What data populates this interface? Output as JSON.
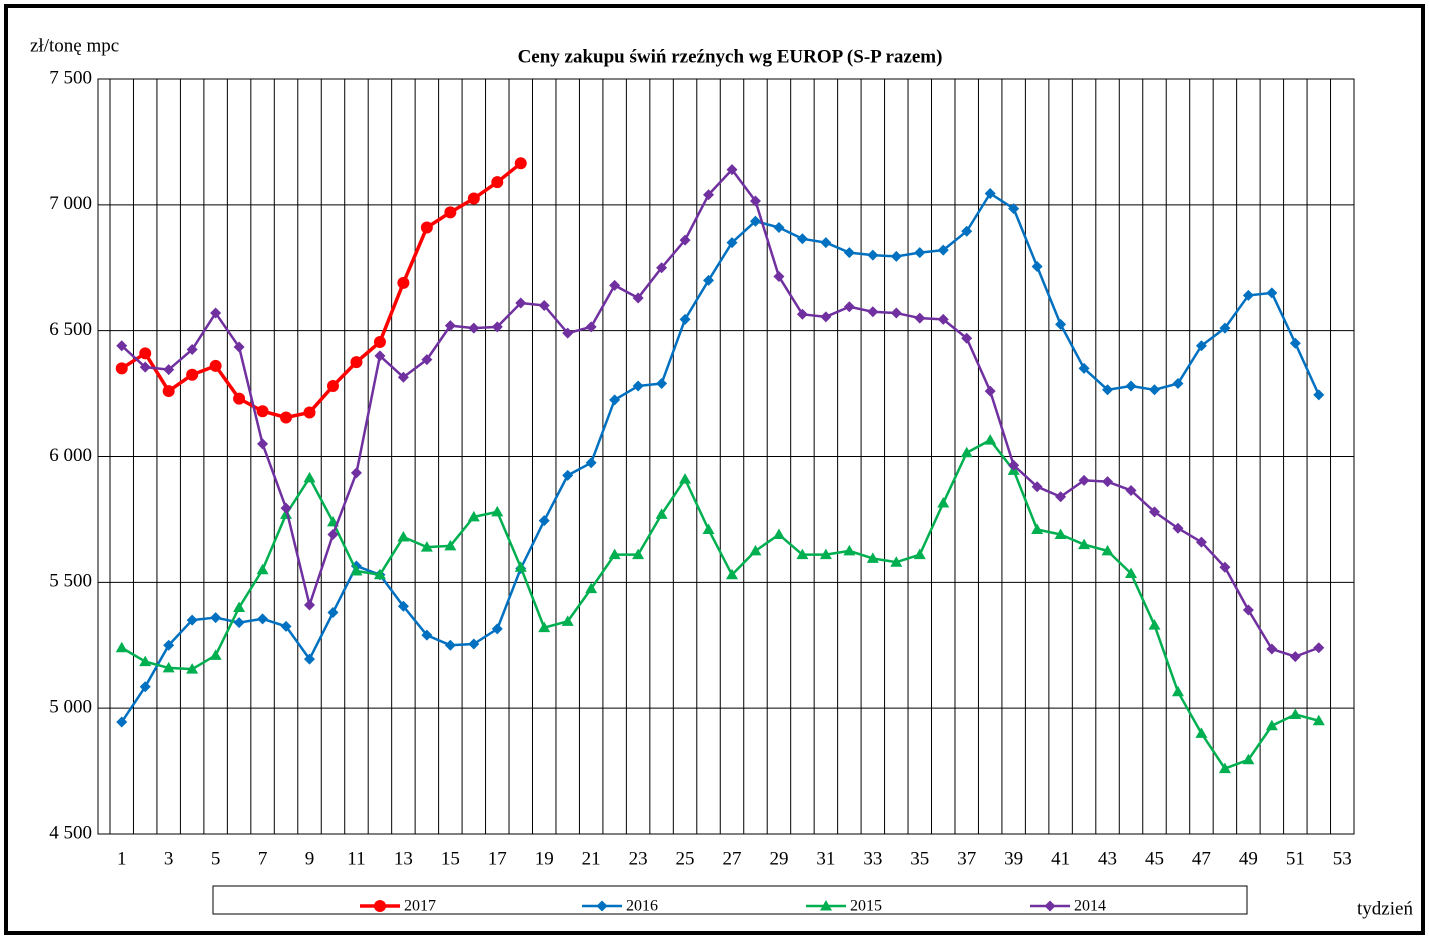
{
  "chart_data": {
    "type": "line",
    "title": "Ceny zakupu świń rzeźnych  wg EUROP (S-P razem)",
    "y_label": "zł/tonę  mpc",
    "x_label": "tydzień",
    "categories": [
      1,
      null,
      3,
      null,
      5,
      null,
      7,
      null,
      9,
      null,
      11,
      null,
      13,
      null,
      15,
      null,
      17,
      null,
      19,
      null,
      21,
      null,
      23,
      null,
      25,
      null,
      27,
      null,
      29,
      null,
      31,
      null,
      33,
      null,
      35,
      null,
      37,
      null,
      39,
      null,
      41,
      null,
      43,
      null,
      45,
      null,
      47,
      null,
      49,
      null,
      51,
      null,
      53
    ],
    "ylim": [
      4500,
      7500
    ],
    "yticks": [
      {
        "value": 4500,
        "label": "4 500"
      },
      {
        "value": 5000,
        "label": "5 000"
      },
      {
        "value": 5500,
        "label": "5 500"
      },
      {
        "value": 6000,
        "label": "6 000"
      },
      {
        "value": 6500,
        "label": "6 500"
      },
      {
        "value": 7000,
        "label": "7 000"
      },
      {
        "value": 7500,
        "label": "7 500"
      }
    ],
    "grid": true,
    "legend": "bottom",
    "series": [
      {
        "name": "2017",
        "color": "#ff0000",
        "marker": "circle",
        "values": [
          6350,
          6410,
          6260,
          6325,
          6360,
          6230,
          6180,
          6155,
          6175,
          6280,
          6375,
          6455,
          6690,
          6910,
          6970,
          7025,
          7090,
          7165,
          null,
          null,
          null,
          null,
          null,
          null,
          null,
          null,
          null,
          null,
          null,
          null,
          null,
          null,
          null,
          null,
          null,
          null,
          null,
          null,
          null,
          null,
          null,
          null,
          null,
          null,
          null,
          null,
          null,
          null,
          null,
          null,
          null,
          null,
          null
        ]
      },
      {
        "name": "2016",
        "color": "#0070c0",
        "marker": "diamond",
        "values": [
          4945,
          5085,
          5250,
          5350,
          5360,
          5340,
          5355,
          5325,
          5195,
          5380,
          5565,
          5530,
          5405,
          5290,
          5250,
          5255,
          5315,
          5555,
          5745,
          5925,
          5975,
          6225,
          6280,
          6290,
          6545,
          6700,
          6850,
          6935,
          6910,
          6865,
          6850,
          6810,
          6800,
          6795,
          6810,
          6820,
          6895,
          7045,
          6985,
          6755,
          6525,
          6350,
          6265,
          6280,
          6265,
          6290,
          6440,
          6510,
          6640,
          6650,
          6450,
          6245,
          null
        ]
      },
      {
        "name": "2015",
        "color": "#00b050",
        "marker": "triangle",
        "values": [
          5240,
          5185,
          5160,
          5155,
          5210,
          5400,
          5550,
          5770,
          5915,
          5740,
          5545,
          5530,
          5680,
          5640,
          5645,
          5760,
          5780,
          5560,
          5320,
          5345,
          5475,
          5610,
          5610,
          5770,
          5910,
          5710,
          5530,
          5625,
          5690,
          5610,
          5610,
          5625,
          5595,
          5580,
          5610,
          5815,
          6015,
          6065,
          5945,
          5710,
          5690,
          5650,
          5625,
          5535,
          5330,
          5065,
          4900,
          4760,
          4795,
          4930,
          4975,
          4950,
          null
        ]
      },
      {
        "name": "2014",
        "color": "#7030a0",
        "marker": "diamond",
        "values": [
          6440,
          6355,
          6345,
          6425,
          6570,
          6435,
          6050,
          5795,
          5410,
          5690,
          5935,
          6400,
          6315,
          6385,
          6520,
          6510,
          6515,
          6610,
          6600,
          6490,
          6515,
          6680,
          6630,
          6750,
          6860,
          7040,
          7140,
          7015,
          6715,
          6565,
          6555,
          6595,
          6575,
          6570,
          6550,
          6545,
          6470,
          6260,
          5965,
          5880,
          5840,
          5905,
          5900,
          5865,
          5780,
          5715,
          5660,
          5560,
          5390,
          5235,
          5205,
          5240,
          null
        ]
      }
    ]
  }
}
